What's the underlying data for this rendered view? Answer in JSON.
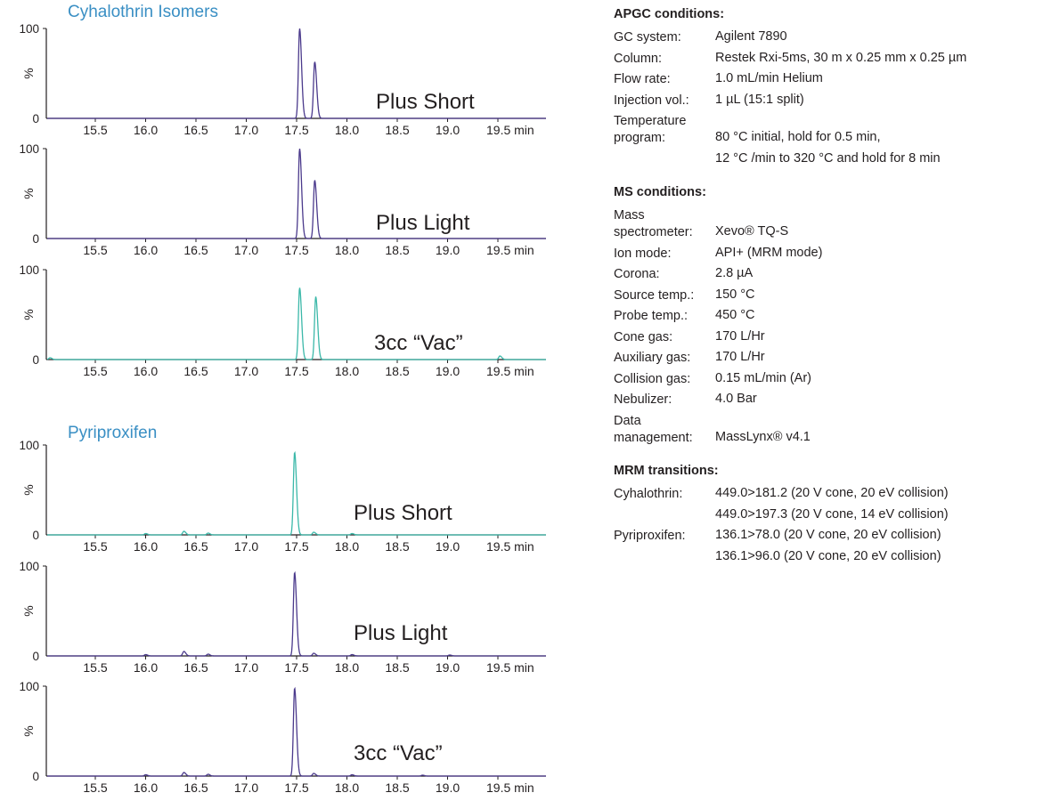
{
  "groups": [
    {
      "title": "Cyhalothrin Isomers",
      "color": "#3a8fc4",
      "panels": [
        {
          "label": "Plus Short",
          "trace_color": "#4b3a8c"
        },
        {
          "label": "Plus Light",
          "trace_color": "#4b3a8c"
        },
        {
          "label": "3cc “Vac”",
          "trace_color": "#3bb8a9"
        }
      ]
    },
    {
      "title": "Pyriproxifen",
      "color": "#3a8fc4",
      "panels": [
        {
          "label": "Plus Short",
          "trace_color": "#3bb8a9"
        },
        {
          "label": "Plus Light",
          "trace_color": "#4b3a8c"
        },
        {
          "label": "3cc “Vac”",
          "trace_color": "#4b3a8c"
        }
      ]
    }
  ],
  "chart_data": [
    {
      "type": "line",
      "title": "Cyhalothrin Isomers",
      "ylabel": "%",
      "xlim": [
        15.0,
        20.0
      ],
      "ylim": [
        0,
        100
      ],
      "x_ticks": [
        "15.5",
        "16.0",
        "16.5",
        "17.0",
        "17.5",
        "18.0",
        "18.5",
        "19.0",
        "19.5 min"
      ],
      "y_ticks": [
        "0",
        "100"
      ],
      "series": [
        {
          "name": "Plus Short",
          "peaks": [
            [
              17.53,
              100
            ],
            [
              17.68,
              63
            ]
          ]
        },
        {
          "name": "Plus Light",
          "peaks": [
            [
              17.53,
              100
            ],
            [
              17.68,
              65
            ]
          ]
        },
        {
          "name": "3cc “Vac”",
          "peaks": [
            [
              15.05,
              2
            ],
            [
              17.53,
              80
            ],
            [
              17.69,
              70
            ],
            [
              19.52,
              4
            ]
          ]
        }
      ]
    },
    {
      "type": "line",
      "title": "Pyriproxifen",
      "ylabel": "%",
      "xlim": [
        15.0,
        20.0
      ],
      "ylim": [
        0,
        100
      ],
      "x_ticks": [
        "15.5",
        "16.0",
        "16.5",
        "17.0",
        "17.5",
        "18.0",
        "18.5",
        "19.0",
        "19.5 min"
      ],
      "y_ticks": [
        "0",
        "100"
      ],
      "series": [
        {
          "name": "Plus Short",
          "peaks": [
            [
              16.0,
              1.5
            ],
            [
              16.38,
              4
            ],
            [
              16.62,
              2
            ],
            [
              17.48,
              92
            ],
            [
              17.67,
              3
            ],
            [
              18.05,
              1.5
            ]
          ]
        },
        {
          "name": "Plus Light",
          "peaks": [
            [
              16.0,
              1.5
            ],
            [
              16.38,
              5
            ],
            [
              16.62,
              2
            ],
            [
              17.48,
              93
            ],
            [
              17.67,
              3
            ],
            [
              18.05,
              1.5
            ],
            [
              19.02,
              1
            ]
          ]
        },
        {
          "name": "3cc “Vac”",
          "peaks": [
            [
              16.0,
              1.5
            ],
            [
              16.38,
              4
            ],
            [
              16.62,
              2
            ],
            [
              17.48,
              98
            ],
            [
              17.67,
              3
            ],
            [
              18.05,
              1.5
            ],
            [
              18.75,
              1
            ]
          ]
        }
      ]
    }
  ],
  "conditions": {
    "apgc": {
      "heading": "APGC conditions:",
      "rows": [
        {
          "label": "GC system:",
          "values": [
            "Agilent 7890"
          ]
        },
        {
          "label": "Column:",
          "values": [
            "Restek Rxi-5ms, 30 m x 0.25 mm x 0.25 µm"
          ]
        },
        {
          "label": "Flow rate:",
          "values": [
            "1.0 mL/min Helium"
          ]
        },
        {
          "label": "Injection vol.:",
          "values": [
            "1 µL (15:1 split)"
          ]
        },
        {
          "label": "Temperature program:",
          "values": [
            "80 °C initial, hold for 0.5 min,",
            "12 °C /min to 320 °C and hold for 8 min"
          ],
          "tall": true
        }
      ]
    },
    "ms": {
      "heading": "MS conditions:",
      "rows": [
        {
          "label": "Mass spectrometer:",
          "values": [
            "Xevo® TQ-S"
          ],
          "tall": true
        },
        {
          "label": "Ion mode:",
          "values": [
            "API+ (MRM mode)"
          ]
        },
        {
          "label": "Corona:",
          "values": [
            "2.8 µA"
          ]
        },
        {
          "label": "Source temp.:",
          "values": [
            "150 °C"
          ]
        },
        {
          "label": "Probe temp.:",
          "values": [
            "450 °C"
          ]
        },
        {
          "label": "Cone gas:",
          "values": [
            "170 L/Hr"
          ]
        },
        {
          "label": "Auxiliary gas:",
          "values": [
            "170 L/Hr"
          ]
        },
        {
          "label": "Collision gas:",
          "values": [
            "0.15 mL/min (Ar)"
          ]
        },
        {
          "label": "Nebulizer:",
          "values": [
            "4.0 Bar"
          ]
        },
        {
          "label": "Data management:",
          "values": [
            "MassLynx® v4.1"
          ],
          "tall": true
        }
      ]
    },
    "mrm": {
      "heading": "MRM transitions:",
      "rows": [
        {
          "label": "Cyhalothrin:",
          "values": [
            "449.0>181.2 (20 V cone, 20 eV collision)",
            "449.0>197.3 (20 V cone, 14 eV collision)"
          ]
        },
        {
          "label": "Pyriproxifen:",
          "values": [
            "136.1>78.0 (20 V cone, 20 eV collision)",
            "136.1>96.0 (20 V cone, 20 eV collision)"
          ]
        }
      ]
    }
  }
}
